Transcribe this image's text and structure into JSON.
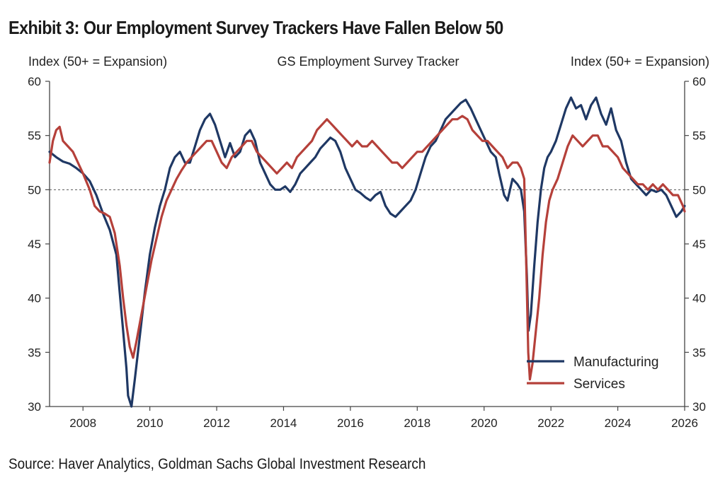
{
  "header": {
    "title": "Exhibit 3: Our Employment Survey Trackers Have Fallen Below 50"
  },
  "footer": {
    "source": "Source: Haver Analytics, Goldman Sachs Global Investment Research"
  },
  "colors": {
    "manufacturing": "#1f3864",
    "services": "#b5403a",
    "axis": "#444444",
    "reference_line": "#555555"
  },
  "chart_data": {
    "type": "line",
    "title": "GS Employment Survey Tracker",
    "ylabel_left": "Index (50+ = Expansion)",
    "ylabel_right": "Index (50+ = Expansion)",
    "xlim": [
      2007,
      2026
    ],
    "ylim": [
      30,
      60
    ],
    "x_ticks": [
      2008,
      2010,
      2012,
      2014,
      2016,
      2018,
      2020,
      2022,
      2024,
      2026
    ],
    "y_ticks": [
      30,
      35,
      40,
      45,
      50,
      55,
      60
    ],
    "reference_line": {
      "y": 50,
      "style": "dotted"
    },
    "grid": false,
    "legend_position": "bottom-right",
    "series": [
      {
        "name": "Manufacturing",
        "color": "#1f3864",
        "points": [
          [
            2007.0,
            53.5
          ],
          [
            2007.2,
            53.0
          ],
          [
            2007.4,
            52.6
          ],
          [
            2007.6,
            52.4
          ],
          [
            2007.8,
            52.0
          ],
          [
            2008.0,
            51.5
          ],
          [
            2008.2,
            50.8
          ],
          [
            2008.4,
            49.5
          ],
          [
            2008.6,
            47.8
          ],
          [
            2008.8,
            46.3
          ],
          [
            2009.0,
            44.0
          ],
          [
            2009.1,
            40.5
          ],
          [
            2009.2,
            37.0
          ],
          [
            2009.3,
            33.5
          ],
          [
            2009.35,
            31.0
          ],
          [
            2009.45,
            30.0
          ],
          [
            2009.55,
            32.5
          ],
          [
            2009.7,
            36.5
          ],
          [
            2009.85,
            40.5
          ],
          [
            2010.0,
            44.0
          ],
          [
            2010.15,
            46.5
          ],
          [
            2010.3,
            48.5
          ],
          [
            2010.45,
            50.0
          ],
          [
            2010.6,
            52.0
          ],
          [
            2010.75,
            53.0
          ],
          [
            2010.9,
            53.5
          ],
          [
            2011.05,
            52.5
          ],
          [
            2011.2,
            52.5
          ],
          [
            2011.35,
            54.0
          ],
          [
            2011.5,
            55.5
          ],
          [
            2011.65,
            56.5
          ],
          [
            2011.8,
            57.0
          ],
          [
            2011.95,
            56.0
          ],
          [
            2012.1,
            54.5
          ],
          [
            2012.25,
            53.0
          ],
          [
            2012.4,
            54.3
          ],
          [
            2012.55,
            53.0
          ],
          [
            2012.7,
            53.5
          ],
          [
            2012.85,
            55.0
          ],
          [
            2013.0,
            55.5
          ],
          [
            2013.15,
            54.5
          ],
          [
            2013.3,
            52.5
          ],
          [
            2013.45,
            51.5
          ],
          [
            2013.6,
            50.5
          ],
          [
            2013.75,
            50.0
          ],
          [
            2013.9,
            50.0
          ],
          [
            2014.05,
            50.3
          ],
          [
            2014.2,
            49.8
          ],
          [
            2014.35,
            50.5
          ],
          [
            2014.5,
            51.5
          ],
          [
            2014.65,
            52.0
          ],
          [
            2014.8,
            52.5
          ],
          [
            2014.95,
            53.0
          ],
          [
            2015.1,
            53.8
          ],
          [
            2015.25,
            54.3
          ],
          [
            2015.4,
            54.8
          ],
          [
            2015.55,
            54.5
          ],
          [
            2015.7,
            53.5
          ],
          [
            2015.85,
            52.0
          ],
          [
            2016.0,
            51.0
          ],
          [
            2016.15,
            50.0
          ],
          [
            2016.3,
            49.7
          ],
          [
            2016.45,
            49.3
          ],
          [
            2016.6,
            49.0
          ],
          [
            2016.75,
            49.5
          ],
          [
            2016.9,
            49.8
          ],
          [
            2017.05,
            48.5
          ],
          [
            2017.2,
            47.8
          ],
          [
            2017.35,
            47.5
          ],
          [
            2017.5,
            48.0
          ],
          [
            2017.65,
            48.5
          ],
          [
            2017.8,
            49.0
          ],
          [
            2017.95,
            50.0
          ],
          [
            2018.1,
            51.5
          ],
          [
            2018.25,
            53.0
          ],
          [
            2018.4,
            54.0
          ],
          [
            2018.55,
            54.5
          ],
          [
            2018.7,
            55.5
          ],
          [
            2018.85,
            56.5
          ],
          [
            2019.0,
            57.0
          ],
          [
            2019.15,
            57.5
          ],
          [
            2019.3,
            58.0
          ],
          [
            2019.45,
            58.3
          ],
          [
            2019.6,
            57.5
          ],
          [
            2019.75,
            56.5
          ],
          [
            2019.9,
            55.5
          ],
          [
            2020.05,
            54.5
          ],
          [
            2020.2,
            53.5
          ],
          [
            2020.35,
            53.0
          ],
          [
            2020.45,
            51.5
          ],
          [
            2020.6,
            49.5
          ],
          [
            2020.7,
            49.0
          ],
          [
            2020.85,
            51.0
          ],
          [
            2021.0,
            50.5
          ],
          [
            2021.1,
            50.0
          ],
          [
            2021.2,
            48.0
          ],
          [
            2021.28,
            42.0
          ],
          [
            2021.33,
            37.0
          ],
          [
            2021.4,
            38.5
          ],
          [
            2021.5,
            43.0
          ],
          [
            2021.6,
            47.0
          ],
          [
            2021.7,
            50.0
          ],
          [
            2021.8,
            52.0
          ],
          [
            2021.9,
            53.0
          ],
          [
            2022.0,
            53.5
          ],
          [
            2022.15,
            54.5
          ],
          [
            2022.3,
            56.0
          ],
          [
            2022.45,
            57.5
          ],
          [
            2022.6,
            58.5
          ],
          [
            2022.75,
            57.5
          ],
          [
            2022.9,
            57.8
          ],
          [
            2023.05,
            56.5
          ],
          [
            2023.2,
            57.8
          ],
          [
            2023.35,
            58.5
          ],
          [
            2023.5,
            57.0
          ],
          [
            2023.65,
            56.0
          ],
          [
            2023.8,
            57.5
          ],
          [
            2023.95,
            55.5
          ],
          [
            2024.1,
            54.5
          ],
          [
            2024.25,
            52.5
          ],
          [
            2024.4,
            51.0
          ],
          [
            2024.55,
            50.5
          ],
          [
            2024.7,
            50.0
          ],
          [
            2024.85,
            49.5
          ],
          [
            2025.0,
            50.0
          ],
          [
            2025.15,
            49.8
          ],
          [
            2025.3,
            50.0
          ],
          [
            2025.45,
            49.5
          ],
          [
            2025.6,
            48.5
          ],
          [
            2025.75,
            47.5
          ],
          [
            2025.9,
            48.0
          ],
          [
            2026.0,
            48.5
          ]
        ]
      },
      {
        "name": "Services",
        "color": "#b5403a",
        "points": [
          [
            2007.0,
            52.5
          ],
          [
            2007.1,
            54.5
          ],
          [
            2007.2,
            55.5
          ],
          [
            2007.3,
            55.8
          ],
          [
            2007.4,
            54.5
          ],
          [
            2007.55,
            54.0
          ],
          [
            2007.7,
            53.5
          ],
          [
            2007.85,
            52.5
          ],
          [
            2008.0,
            51.5
          ],
          [
            2008.2,
            50.0
          ],
          [
            2008.35,
            48.5
          ],
          [
            2008.5,
            48.0
          ],
          [
            2008.65,
            47.8
          ],
          [
            2008.8,
            47.5
          ],
          [
            2008.95,
            46.0
          ],
          [
            2009.1,
            43.0
          ],
          [
            2009.2,
            40.0
          ],
          [
            2009.3,
            37.5
          ],
          [
            2009.4,
            35.5
          ],
          [
            2009.5,
            34.5
          ],
          [
            2009.6,
            36.0
          ],
          [
            2009.75,
            38.5
          ],
          [
            2009.9,
            41.0
          ],
          [
            2010.05,
            43.5
          ],
          [
            2010.2,
            45.5
          ],
          [
            2010.35,
            47.5
          ],
          [
            2010.5,
            49.0
          ],
          [
            2010.65,
            50.0
          ],
          [
            2010.8,
            51.0
          ],
          [
            2010.95,
            51.8
          ],
          [
            2011.1,
            52.5
          ],
          [
            2011.25,
            53.0
          ],
          [
            2011.4,
            53.5
          ],
          [
            2011.55,
            54.0
          ],
          [
            2011.7,
            54.5
          ],
          [
            2011.85,
            54.5
          ],
          [
            2012.0,
            53.5
          ],
          [
            2012.15,
            52.5
          ],
          [
            2012.3,
            52.0
          ],
          [
            2012.45,
            53.0
          ],
          [
            2012.6,
            53.5
          ],
          [
            2012.75,
            54.0
          ],
          [
            2012.9,
            54.5
          ],
          [
            2013.05,
            54.5
          ],
          [
            2013.2,
            53.5
          ],
          [
            2013.35,
            53.0
          ],
          [
            2013.5,
            52.5
          ],
          [
            2013.65,
            52.0
          ],
          [
            2013.8,
            51.5
          ],
          [
            2013.95,
            52.0
          ],
          [
            2014.1,
            52.5
          ],
          [
            2014.25,
            52.0
          ],
          [
            2014.4,
            53.0
          ],
          [
            2014.55,
            53.5
          ],
          [
            2014.7,
            54.0
          ],
          [
            2014.85,
            54.5
          ],
          [
            2015.0,
            55.5
          ],
          [
            2015.15,
            56.0
          ],
          [
            2015.3,
            56.5
          ],
          [
            2015.45,
            56.0
          ],
          [
            2015.6,
            55.5
          ],
          [
            2015.75,
            55.0
          ],
          [
            2015.9,
            54.5
          ],
          [
            2016.05,
            54.0
          ],
          [
            2016.2,
            54.5
          ],
          [
            2016.35,
            54.0
          ],
          [
            2016.5,
            54.0
          ],
          [
            2016.65,
            54.5
          ],
          [
            2016.8,
            54.0
          ],
          [
            2016.95,
            53.5
          ],
          [
            2017.1,
            53.0
          ],
          [
            2017.25,
            52.5
          ],
          [
            2017.4,
            52.5
          ],
          [
            2017.55,
            52.0
          ],
          [
            2017.7,
            52.5
          ],
          [
            2017.85,
            53.0
          ],
          [
            2018.0,
            53.5
          ],
          [
            2018.15,
            53.5
          ],
          [
            2018.3,
            54.0
          ],
          [
            2018.45,
            54.5
          ],
          [
            2018.6,
            55.0
          ],
          [
            2018.75,
            55.5
          ],
          [
            2018.9,
            56.0
          ],
          [
            2019.05,
            56.5
          ],
          [
            2019.2,
            56.5
          ],
          [
            2019.35,
            56.8
          ],
          [
            2019.5,
            56.5
          ],
          [
            2019.65,
            55.5
          ],
          [
            2019.8,
            55.0
          ],
          [
            2019.95,
            54.5
          ],
          [
            2020.1,
            54.5
          ],
          [
            2020.25,
            54.0
          ],
          [
            2020.4,
            53.5
          ],
          [
            2020.55,
            53.0
          ],
          [
            2020.7,
            52.0
          ],
          [
            2020.85,
            52.5
          ],
          [
            2021.0,
            52.5
          ],
          [
            2021.1,
            52.0
          ],
          [
            2021.2,
            51.0
          ],
          [
            2021.27,
            42.0
          ],
          [
            2021.32,
            35.0
          ],
          [
            2021.37,
            32.5
          ],
          [
            2021.45,
            34.0
          ],
          [
            2021.55,
            37.0
          ],
          [
            2021.65,
            40.0
          ],
          [
            2021.75,
            44.0
          ],
          [
            2021.85,
            47.0
          ],
          [
            2021.95,
            49.0
          ],
          [
            2022.05,
            50.0
          ],
          [
            2022.2,
            51.0
          ],
          [
            2022.35,
            52.5
          ],
          [
            2022.5,
            54.0
          ],
          [
            2022.65,
            55.0
          ],
          [
            2022.8,
            54.5
          ],
          [
            2022.95,
            54.0
          ],
          [
            2023.1,
            54.5
          ],
          [
            2023.25,
            55.0
          ],
          [
            2023.4,
            55.0
          ],
          [
            2023.55,
            54.0
          ],
          [
            2023.7,
            54.0
          ],
          [
            2023.85,
            53.5
          ],
          [
            2024.0,
            53.0
          ],
          [
            2024.15,
            52.0
          ],
          [
            2024.3,
            51.5
          ],
          [
            2024.45,
            51.0
          ],
          [
            2024.6,
            50.5
          ],
          [
            2024.75,
            50.5
          ],
          [
            2024.9,
            50.0
          ],
          [
            2025.05,
            50.5
          ],
          [
            2025.2,
            50.0
          ],
          [
            2025.35,
            50.5
          ],
          [
            2025.5,
            50.0
          ],
          [
            2025.65,
            49.5
          ],
          [
            2025.8,
            49.5
          ],
          [
            2025.95,
            48.5
          ],
          [
            2026.0,
            48.0
          ]
        ]
      }
    ]
  }
}
